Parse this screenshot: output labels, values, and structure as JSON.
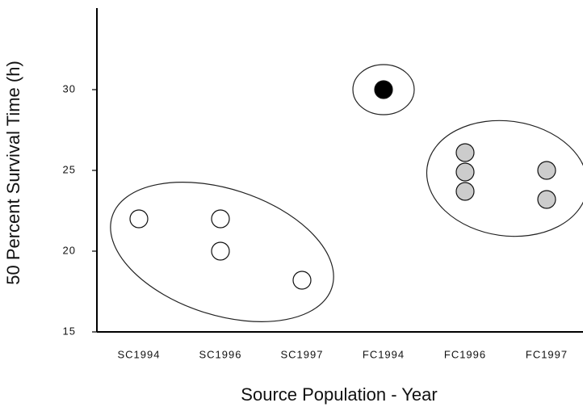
{
  "chart_data": {
    "type": "scatter",
    "x_label": "Source Population - Year",
    "y_label": "50 Percent Survival Time (h)",
    "categories": [
      "SC1994",
      "SC1996",
      "SC1997",
      "FC1994",
      "FC1996",
      "FC1997"
    ],
    "series": [
      {
        "color": "#ffffff",
        "x": [
          "SC1994",
          "SC1996",
          "SC1996",
          "SC1997"
        ],
        "values": [
          22,
          22,
          20,
          18.2
        ]
      },
      {
        "color": "#000000",
        "x": [
          "FC1994"
        ],
        "values": [
          30
        ]
      },
      {
        "color": "#cccccc",
        "x": [
          "FC1996",
          "FC1996",
          "FC1996",
          "FC1997",
          "FC1997"
        ],
        "values": [
          26.1,
          24.9,
          23.7,
          25,
          23.2
        ]
      }
    ],
    "ylim": [
      15,
      35
    ],
    "yticks": [
      15,
      20,
      25,
      30
    ]
  }
}
